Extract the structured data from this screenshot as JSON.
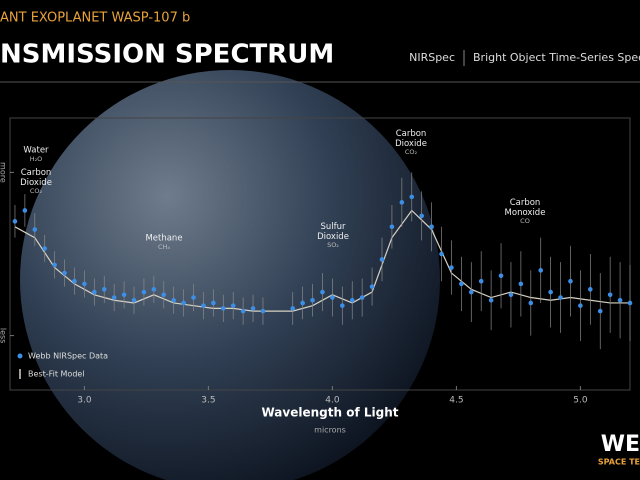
{
  "chart_data": {
    "type": "scatter",
    "title": "ANT EXOPLANET WASP-107 b",
    "subtitle": "NSMISSION SPECTRUM",
    "instrument": "NIRSpec",
    "mode": "Bright Object Time-Series Spectr",
    "x_label": "Wavelength of Light",
    "x_unit": "microns",
    "logo": [
      "WE",
      "SPACE TE"
    ],
    "xlim": [
      2.7,
      5.2
    ],
    "xticks": [
      {
        "value": 3,
        "label": "3.0"
      },
      {
        "value": 3.5,
        "label": "3.5"
      },
      {
        "value": 4,
        "label": "4.0"
      },
      {
        "value": 4.5,
        "label": "4.5"
      },
      {
        "value": 5,
        "label": "5.0"
      }
    ],
    "ylim": [
      0,
      10
    ],
    "yticks": [
      {
        "value": 8,
        "label": "more"
      },
      {
        "value": 2,
        "label": "less"
      }
    ],
    "legend": "lower left",
    "annotations": [
      {
        "text": "Water",
        "sub": "H₂O"
      },
      {
        "text": "Carbon Dioxide",
        "sub": "CO₂"
      },
      {
        "text": "Methane",
        "sub": "CH₄"
      },
      {
        "text": "Sulfur Dioxide",
        "sub": "SO₂"
      },
      {
        "text": "Carbon Dioxide",
        "sub": "CO₂"
      },
      {
        "text": "Carbon Monoxide",
        "sub": "CO"
      }
    ],
    "series": [
      {
        "name": "Webb NIRSpec Data",
        "color": "#3d8fe6",
        "x": [
          2.72,
          2.76,
          2.8,
          2.84,
          2.88,
          2.92,
          2.96,
          3.0,
          3.04,
          3.08,
          3.12,
          3.16,
          3.2,
          3.24,
          3.28,
          3.32,
          3.36,
          3.4,
          3.44,
          3.48,
          3.52,
          3.56,
          3.6,
          3.64,
          3.68,
          3.72,
          3.84,
          3.88,
          3.92,
          3.96,
          4.0,
          4.04,
          4.08,
          4.12,
          4.16,
          4.2,
          4.24,
          4.28,
          4.32,
          4.36,
          4.4,
          4.44,
          4.48,
          4.52,
          4.56,
          4.6,
          4.64,
          4.68,
          4.72,
          4.76,
          4.8,
          4.84,
          4.88,
          4.92,
          4.96,
          5.0,
          5.04,
          5.08,
          5.12,
          5.16,
          5.2
        ],
        "values": [
          6.2,
          6.6,
          5.9,
          5.2,
          4.6,
          4.3,
          4.0,
          3.9,
          3.6,
          3.7,
          3.4,
          3.5,
          3.3,
          3.6,
          3.7,
          3.5,
          3.3,
          3.2,
          3.4,
          3.1,
          3.2,
          3.0,
          3.1,
          2.9,
          3.0,
          2.9,
          3.0,
          3.2,
          3.3,
          3.6,
          3.4,
          3.1,
          3.3,
          3.4,
          3.8,
          4.8,
          6.0,
          6.9,
          7.1,
          6.4,
          6.0,
          5.0,
          4.5,
          3.9,
          3.6,
          4.0,
          3.3,
          4.2,
          3.5,
          3.9,
          3.2,
          4.4,
          3.6,
          3.4,
          4.0,
          3.1,
          3.7,
          2.9,
          3.5,
          3.3,
          3.2
        ],
        "errors": [
          0.6,
          0.6,
          0.6,
          0.5,
          0.5,
          0.5,
          0.5,
          0.5,
          0.5,
          0.5,
          0.5,
          0.5,
          0.5,
          0.5,
          0.5,
          0.5,
          0.5,
          0.5,
          0.5,
          0.5,
          0.5,
          0.5,
          0.5,
          0.5,
          0.5,
          0.5,
          0.6,
          0.6,
          0.6,
          0.7,
          0.7,
          0.7,
          0.7,
          0.7,
          0.7,
          0.8,
          0.8,
          0.9,
          0.9,
          0.9,
          0.9,
          1.0,
          1.0,
          1.0,
          1.1,
          1.1,
          1.1,
          1.2,
          1.2,
          1.2,
          1.2,
          1.2,
          1.3,
          1.3,
          1.3,
          1.3,
          1.3,
          1.4,
          1.4,
          1.4,
          1.4
        ]
      },
      {
        "name": "Best-Fit Model",
        "color": "#d8d2c4",
        "x": [
          2.72,
          2.8,
          2.88,
          2.96,
          3.04,
          3.12,
          3.2,
          3.28,
          3.36,
          3.44,
          3.52,
          3.6,
          3.68,
          3.76,
          3.84,
          3.92,
          4.0,
          4.08,
          4.16,
          4.24,
          4.32,
          4.4,
          4.48,
          4.56,
          4.64,
          4.72,
          4.8,
          4.88,
          4.96,
          5.04,
          5.12,
          5.2
        ],
        "values": [
          6.0,
          5.6,
          4.5,
          3.9,
          3.5,
          3.3,
          3.2,
          3.5,
          3.2,
          3.1,
          3.0,
          3.0,
          2.9,
          2.9,
          2.9,
          3.1,
          3.5,
          3.2,
          3.6,
          5.6,
          6.6,
          5.9,
          4.3,
          3.7,
          3.4,
          3.6,
          3.4,
          3.3,
          3.4,
          3.3,
          3.2,
          3.2
        ]
      }
    ]
  }
}
